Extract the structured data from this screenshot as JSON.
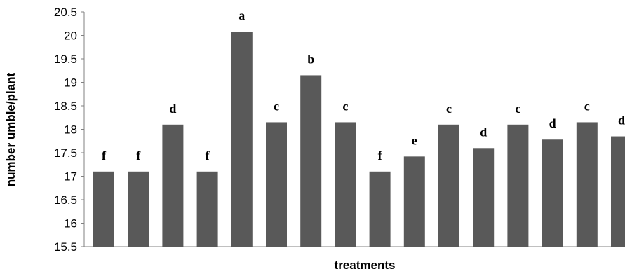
{
  "chart_data": {
    "type": "bar",
    "title": "",
    "xlabel": "treatments",
    "ylabel": "number umble/plant",
    "ylim": [
      15.5,
      20.5
    ],
    "yticks": [
      "15.5",
      "16",
      "16.5",
      "17",
      "17.5",
      "18",
      "18.5",
      "19",
      "19.5",
      "20",
      "20.5"
    ],
    "categories": [
      "",
      "",
      "",
      "",
      "",
      "",
      "",
      "",
      "",
      "",
      "",
      "",
      "",
      "",
      "",
      ""
    ],
    "values": [
      17.1,
      17.1,
      18.1,
      17.1,
      20.08,
      18.15,
      19.15,
      18.15,
      17.1,
      17.42,
      18.1,
      17.6,
      18.1,
      17.78,
      18.15,
      17.85
    ],
    "labels": [
      "f",
      "f",
      "d",
      "f",
      "a",
      "c",
      "b",
      "c",
      "f",
      "e",
      "c",
      "d",
      "c",
      "d",
      "c",
      "d"
    ],
    "bar_color": "#595959",
    "grid": false,
    "legend": "none"
  }
}
